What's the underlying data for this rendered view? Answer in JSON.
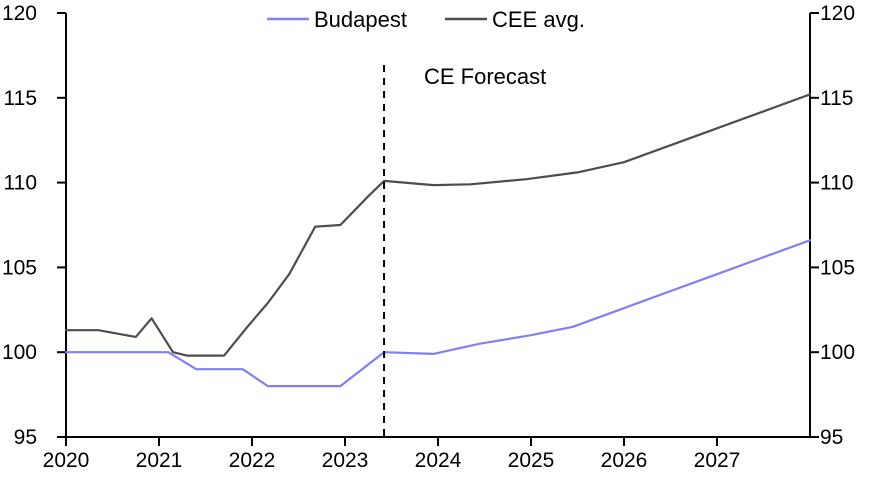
{
  "chart_data": {
    "type": "line",
    "title": "",
    "xlim": [
      2020,
      2028
    ],
    "ylim": [
      95,
      120
    ],
    "x_ticks": [
      2020,
      2021,
      2022,
      2023,
      2024,
      2025,
      2026,
      2027
    ],
    "y_ticks": [
      95,
      100,
      105,
      110,
      115,
      120
    ],
    "grid": "off",
    "legend_position": "top-center",
    "dual_y_axis": true,
    "annotation": {
      "label": "CE Forecast",
      "x": 2023.42
    },
    "series": [
      {
        "name": "Budapest",
        "color": "#8080f0",
        "points": [
          [
            2020.0,
            100.0
          ],
          [
            2021.1,
            100.0
          ],
          [
            2021.4,
            99.0
          ],
          [
            2021.9,
            99.0
          ],
          [
            2022.17,
            98.0
          ],
          [
            2022.95,
            98.0
          ],
          [
            2023.42,
            100.0
          ],
          [
            2023.95,
            99.9
          ],
          [
            2024.45,
            100.5
          ],
          [
            2025.0,
            101.0
          ],
          [
            2025.45,
            101.5
          ],
          [
            2025.95,
            102.5
          ],
          [
            2026.5,
            103.6
          ],
          [
            2027.0,
            104.6
          ],
          [
            2027.5,
            105.6
          ],
          [
            2028.0,
            106.6
          ]
        ]
      },
      {
        "name": "CEE avg.",
        "color": "#4d4d4d",
        "points": [
          [
            2020.0,
            101.3
          ],
          [
            2020.35,
            101.3
          ],
          [
            2020.6,
            101.05
          ],
          [
            2020.75,
            100.9
          ],
          [
            2020.92,
            102.0
          ],
          [
            2021.15,
            100.0
          ],
          [
            2021.3,
            99.8
          ],
          [
            2021.7,
            99.8
          ],
          [
            2021.95,
            101.5
          ],
          [
            2022.17,
            102.9
          ],
          [
            2022.4,
            104.6
          ],
          [
            2022.68,
            107.4
          ],
          [
            2022.95,
            107.5
          ],
          [
            2023.25,
            109.2
          ],
          [
            2023.42,
            110.1
          ],
          [
            2023.95,
            109.85
          ],
          [
            2024.35,
            109.9
          ],
          [
            2024.95,
            110.2
          ],
          [
            2025.5,
            110.6
          ],
          [
            2026.0,
            111.2
          ],
          [
            2027.0,
            113.2
          ],
          [
            2028.0,
            115.2
          ]
        ]
      }
    ]
  },
  "colors": {
    "axis": "#000000",
    "forecast_line": "#000000",
    "background": "#ffffff"
  }
}
